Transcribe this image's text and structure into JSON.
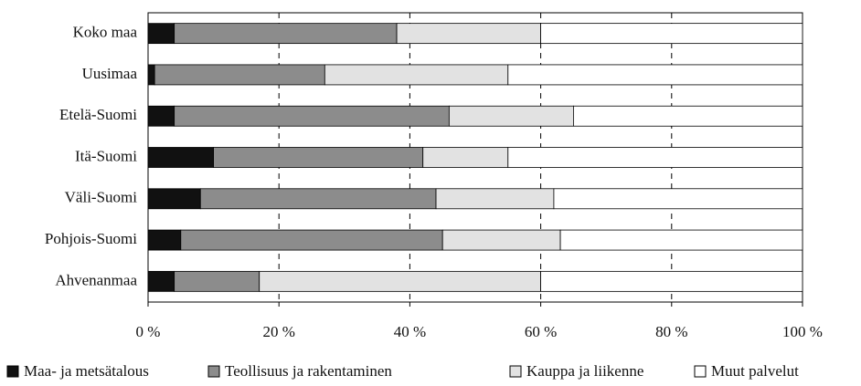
{
  "chart_data": {
    "type": "stacked_barh",
    "categories": [
      "Koko maa",
      "Uusimaa",
      "Etelä-Suomi",
      "Itä-Suomi",
      "Väli-Suomi",
      "Pohjois-Suomi",
      "Ahvenanmaa"
    ],
    "series": [
      {
        "name": "Maa- ja metsätalous",
        "color": "#111111",
        "values": [
          4,
          1,
          4,
          10,
          8,
          5,
          4
        ]
      },
      {
        "name": "Teollisuus ja rakentaminen",
        "color": "#8c8c8c",
        "values": [
          34,
          26,
          42,
          32,
          36,
          40,
          13
        ]
      },
      {
        "name": "Kauppa ja liikenne",
        "color": "#e2e2e2",
        "values": [
          22,
          28,
          19,
          13,
          18,
          18,
          43
        ]
      },
      {
        "name": "Muut palvelut",
        "color": "#ffffff",
        "values": [
          40,
          45,
          35,
          45,
          38,
          37,
          40
        ]
      }
    ],
    "xlim": [
      0,
      100
    ],
    "xticks": [
      {
        "value": 0,
        "label": "0 %"
      },
      {
        "value": 20,
        "label": "20 %"
      },
      {
        "value": 40,
        "label": "40 %"
      },
      {
        "value": 60,
        "label": "60 %"
      },
      {
        "value": 80,
        "label": "80 %"
      },
      {
        "value": 100,
        "label": "100 %"
      }
    ],
    "grid": true,
    "legend": "bottom"
  }
}
